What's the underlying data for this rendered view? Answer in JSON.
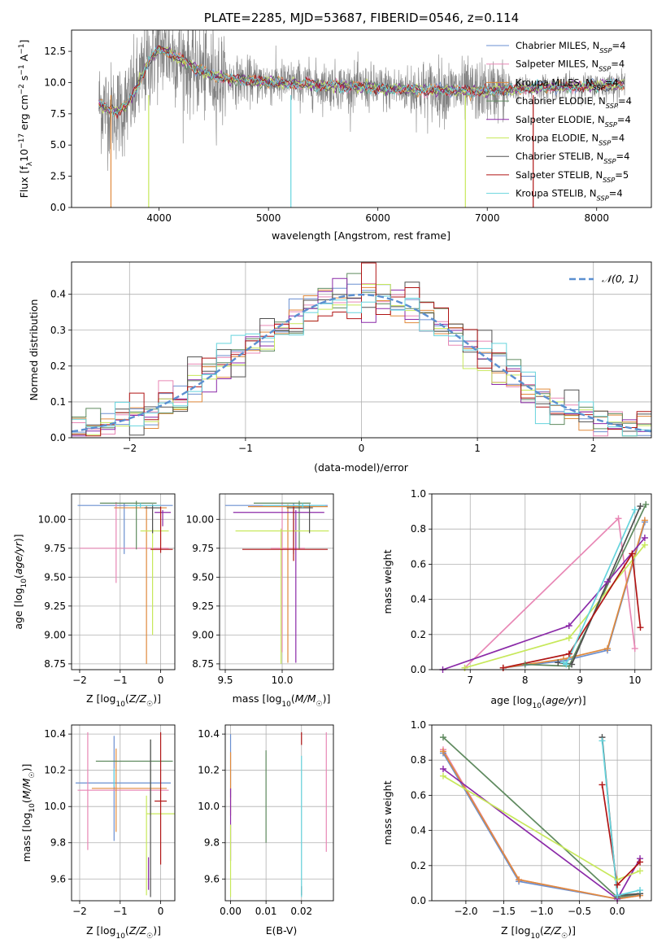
{
  "title": "PLATE=2285, MJD=53687, FIBERID=0546, z=0.114",
  "colors": {
    "Chabrier MILES": "#6a8fd0",
    "Salpeter MILES": "#e887b5",
    "Kroupa MILES": "#e08a3c",
    "Chabrier ELODIE": "#5f8a5f",
    "Salpeter ELODIE": "#8b2aa8",
    "Kroupa ELODIE": "#c7e85a",
    "Chabrier STELIB": "#505050",
    "Salpeter STELIB": "#b01515",
    "Kroupa STELIB": "#66d4dd",
    "data": "#808080",
    "normal": "#5b8fd0"
  },
  "chart_data": [
    {
      "id": "spectrum",
      "type": "line",
      "xlabel": "wavelength [Angstrom, rest frame]",
      "ylabel": "Flux [f_λ10^-17 erg cm^-2 s^-1 A^-1]",
      "xlim": [
        3200,
        8500
      ],
      "ylim": [
        0,
        14.2
      ],
      "xticks": [
        4000,
        5000,
        6000,
        7000,
        8000
      ],
      "yticks": [
        0.0,
        2.5,
        5.0,
        7.5,
        10.0,
        12.5
      ],
      "grid": false,
      "legend_position": "top-right",
      "legend": [
        {
          "base": "Chabrier MILES, N",
          "sub": "SSP",
          "tail": "=4",
          "key": "Chabrier MILES"
        },
        {
          "base": "Salpeter MILES, N",
          "sub": "SSP",
          "tail": "=4",
          "key": "Salpeter MILES"
        },
        {
          "base": "Kroupa MILES, N",
          "sub": "SSP",
          "tail": "=4",
          "key": "Kroupa MILES"
        },
        {
          "base": "Chabrier ELODIE, N",
          "sub": "SSP",
          "tail": "=4",
          "key": "Chabrier ELODIE"
        },
        {
          "base": "Salpeter ELODIE, N",
          "sub": "SSP",
          "tail": "=4",
          "key": "Salpeter ELODIE"
        },
        {
          "base": "Kroupa ELODIE, N",
          "sub": "SSP",
          "tail": "=4",
          "key": "Kroupa ELODIE"
        },
        {
          "base": "Chabrier STELIB, N",
          "sub": "SSP",
          "tail": "=4",
          "key": "Chabrier STELIB"
        },
        {
          "base": "Salpeter STELIB, N",
          "sub": "SSP",
          "tail": "=5",
          "key": "Salpeter STELIB"
        },
        {
          "base": "Kroupa STELIB, N",
          "sub": "SSP",
          "tail": "=4",
          "key": "Kroupa STELIB"
        }
      ],
      "model_continuum": {
        "x": [
          3450,
          3600,
          3700,
          3800,
          3900,
          4000,
          4100,
          4300,
          4500,
          4700,
          4900,
          5100,
          5300,
          5500,
          5700,
          5900,
          6100,
          6300,
          6500,
          6700,
          6900,
          7100,
          7300,
          7500,
          7700,
          7900,
          8100,
          8260
        ],
        "y": [
          8.3,
          7.6,
          8.1,
          9.6,
          11.6,
          12.7,
          12.4,
          11.3,
          10.5,
          10.2,
          10.1,
          10.0,
          9.9,
          9.8,
          9.7,
          9.6,
          9.5,
          9.45,
          9.4,
          9.35,
          9.3,
          9.4,
          9.5,
          9.6,
          9.65,
          9.7,
          9.8,
          9.85
        ]
      }
    },
    {
      "id": "residuals",
      "type": "histogram",
      "xlabel": "(data-model)/error",
      "ylabel": "Normed distribution",
      "xlim": [
        -2.5,
        2.5
      ],
      "ylim": [
        0,
        0.49
      ],
      "xticks": [
        -2,
        -1,
        0,
        1,
        2
      ],
      "yticks": [
        0.0,
        0.1,
        0.2,
        0.3,
        0.4
      ],
      "grid": true,
      "legend_position": "top-right",
      "legend_label": "N(0,1)"
    },
    {
      "id": "age_vs_Z",
      "type": "errorbar",
      "xlabel": "Z [log10(Z/Z☉)]",
      "ylabel": "age  [log10(age/yr)]",
      "xlim": [
        -2.2,
        0.35
      ],
      "ylim": [
        8.7,
        10.22
      ],
      "xticks": [
        -2,
        -1,
        0
      ],
      "yticks": [
        8.75,
        9.0,
        9.25,
        9.5,
        9.75,
        10.0
      ],
      "grid": true,
      "points": [
        {
          "key": "Chabrier MILES",
          "x": -0.9,
          "xerr": [
            1.15,
            1.2
          ],
          "y": 10.12,
          "yerr": [
            0.42,
            0.02
          ]
        },
        {
          "key": "Salpeter MILES",
          "x": -1.1,
          "xerr": [
            0.9,
            1.3
          ],
          "y": 9.75,
          "yerr": [
            0.3,
            0.4
          ]
        },
        {
          "key": "Kroupa MILES",
          "x": -0.35,
          "xerr": [
            0.8,
            0.5
          ],
          "y": 10.1,
          "yerr": [
            1.35,
            0.02
          ]
        },
        {
          "key": "Chabrier ELODIE",
          "x": -0.6,
          "xerr": [
            0.9,
            0.5
          ],
          "y": 10.14,
          "yerr": [
            0.4,
            0.02
          ]
        },
        {
          "key": "Salpeter ELODIE",
          "x": 0.05,
          "xerr": [
            0.2,
            0.2
          ],
          "y": 10.06,
          "yerr": [
            0.12,
            0.02
          ]
        },
        {
          "key": "Kroupa ELODIE",
          "x": -0.2,
          "xerr": [
            0.3,
            0.4
          ],
          "y": 9.9,
          "yerr": [
            0.9,
            0.02
          ]
        },
        {
          "key": "Chabrier STELIB",
          "x": -0.2,
          "xerr": [
            0.2,
            0.2
          ],
          "y": 10.1,
          "yerr": [
            0.22,
            0.03
          ]
        },
        {
          "key": "Salpeter STELIB",
          "x": 0.0,
          "xerr": [
            0.25,
            0.3
          ],
          "y": 9.74,
          "yerr": [
            0.03,
            0.37
          ]
        },
        {
          "key": "Kroupa STELIB",
          "x": -0.5,
          "xerr": [
            0.3,
            0.5
          ],
          "y": 10.12,
          "yerr": [
            0.02,
            0.02
          ]
        }
      ]
    },
    {
      "id": "age_vs_mass",
      "type": "errorbar",
      "xlabel": "mass [log10(M/M☉)]",
      "ylabel": "",
      "xlim": [
        9.45,
        10.45
      ],
      "ylim": [
        8.7,
        10.22
      ],
      "xticks": [
        9.5,
        10.0
      ],
      "yticks": [
        8.75,
        9.0,
        9.25,
        9.5,
        9.75,
        10.0
      ],
      "grid": true,
      "points": [
        {
          "key": "Chabrier MILES",
          "x": 10.1,
          "xerr": [
            0.6,
            0.3
          ],
          "y": 10.12,
          "yerr": [
            0.42,
            0.02
          ]
        },
        {
          "key": "Salpeter MILES",
          "x": 10.0,
          "xerr": [
            0.1,
            0.2
          ],
          "y": 9.75,
          "yerr": [
            0.9,
            0.4
          ]
        },
        {
          "key": "Kroupa MILES",
          "x": 10.05,
          "xerr": [
            0.35,
            0.35
          ],
          "y": 10.11,
          "yerr": [
            1.35,
            0.02
          ]
        },
        {
          "key": "Chabrier ELODIE",
          "x": 10.15,
          "xerr": [
            0.4,
            0.1
          ],
          "y": 10.14,
          "yerr": [
            0.4,
            0.02
          ]
        },
        {
          "key": "Salpeter ELODIE",
          "x": 10.12,
          "xerr": [
            0.55,
            0.25
          ],
          "y": 10.06,
          "yerr": [
            1.3,
            0.02
          ]
        },
        {
          "key": "Kroupa ELODIE",
          "x": 9.99,
          "xerr": [
            0.4,
            0.42
          ],
          "y": 9.9,
          "yerr": [
            1.15,
            0.02
          ]
        },
        {
          "key": "Chabrier STELIB",
          "x": 10.24,
          "xerr": [
            0.2,
            0.03
          ],
          "y": 10.1,
          "yerr": [
            0.22,
            0.03
          ]
        },
        {
          "key": "Salpeter STELIB",
          "x": 10.1,
          "xerr": [
            0.45,
            0.3
          ],
          "y": 9.74,
          "yerr": [
            0.1,
            0.37
          ]
        },
        {
          "key": "Kroupa STELIB",
          "x": 10.18,
          "xerr": [
            0.35,
            0.2
          ],
          "y": 10.12,
          "yerr": [
            0.02,
            0.02
          ]
        }
      ]
    },
    {
      "id": "mass_weight_vs_age",
      "type": "line",
      "xlabel": "age  [log10(age/yr)]",
      "ylabel": "mass weight",
      "xlim": [
        6.3,
        10.3
      ],
      "ylim": [
        0,
        1.0
      ],
      "xticks": [
        7,
        8,
        9,
        10
      ],
      "yticks": [
        0.0,
        0.2,
        0.4,
        0.6,
        0.8,
        1.0
      ],
      "grid": true,
      "series": [
        {
          "key": "Chabrier MILES",
          "x": [
            7.6,
            8.7,
            9.5,
            10.18
          ],
          "y": [
            0.01,
            0.05,
            0.11,
            0.84
          ]
        },
        {
          "key": "Salpeter MILES",
          "x": [
            6.9,
            9.7,
            10.0
          ],
          "y": [
            0.01,
            0.86,
            0.12
          ]
        },
        {
          "key": "Kroupa MILES",
          "x": [
            7.6,
            8.7,
            9.5,
            10.18
          ],
          "y": [
            0.01,
            0.06,
            0.12,
            0.85
          ]
        },
        {
          "key": "Chabrier ELODIE",
          "x": [
            8.0,
            8.8,
            10.2
          ],
          "y": [
            0.03,
            0.02,
            0.94
          ]
        },
        {
          "key": "Salpeter ELODIE",
          "x": [
            6.5,
            8.8,
            9.5,
            10.18
          ],
          "y": [
            0.0,
            0.25,
            0.5,
            0.75
          ]
        },
        {
          "key": "Kroupa ELODIE",
          "x": [
            6.9,
            8.8,
            10.18
          ],
          "y": [
            0.01,
            0.18,
            0.71
          ]
        },
        {
          "key": "Chabrier STELIB",
          "x": [
            8.6,
            8.85,
            10.1
          ],
          "y": [
            0.04,
            0.03,
            0.93
          ]
        },
        {
          "key": "Salpeter STELIB",
          "x": [
            7.6,
            8.8,
            9.95,
            10.1
          ],
          "y": [
            0.01,
            0.09,
            0.66,
            0.24
          ]
        },
        {
          "key": "Kroupa STELIB",
          "x": [
            8.7,
            8.75,
            10.0
          ],
          "y": [
            0.04,
            0.03,
            0.91
          ]
        }
      ]
    },
    {
      "id": "mass_vs_Z",
      "type": "errorbar",
      "xlabel": "Z [log10(Z/Z☉)]",
      "ylabel": "mass [log10(M/M☉)]",
      "xlim": [
        -2.2,
        0.35
      ],
      "ylim": [
        9.48,
        10.45
      ],
      "xticks": [
        -2,
        -1,
        0
      ],
      "yticks": [
        9.6,
        9.8,
        10.0,
        10.2,
        10.4
      ],
      "grid": true,
      "points": [
        {
          "key": "Chabrier MILES",
          "x": -1.15,
          "xerr": [
            0.95,
            1.4
          ],
          "y": 10.13,
          "yerr": [
            0.32,
            0.26
          ]
        },
        {
          "key": "Salpeter MILES",
          "x": -1.8,
          "xerr": [
            0.25,
            2.0
          ],
          "y": 10.09,
          "yerr": [
            0.33,
            0.32
          ]
        },
        {
          "key": "Kroupa MILES",
          "x": -1.1,
          "xerr": [
            0.6,
            1.25
          ],
          "y": 10.1,
          "yerr": [
            0.24,
            0.22
          ]
        },
        {
          "key": "Chabrier ELODIE",
          "x": -0.25,
          "xerr": [
            1.35,
            0.55
          ],
          "y": 10.25,
          "yerr": [
            0.3,
            0.12
          ]
        },
        {
          "key": "Salpeter ELODIE",
          "x": -0.3,
          "xerr": [
            0.0,
            0.0
          ],
          "y": 9.62,
          "yerr": [
            0.08,
            0.1
          ]
        },
        {
          "key": "Kroupa ELODIE",
          "x": -0.35,
          "xerr": [
            0.0,
            0.7
          ],
          "y": 9.96,
          "yerr": [
            0.45,
            0.1
          ]
        },
        {
          "key": "Chabrier STELIB",
          "x": -0.25,
          "xerr": [
            0.0,
            0.0
          ],
          "y": 10.1,
          "yerr": [
            0.6,
            0.27
          ]
        },
        {
          "key": "Salpeter STELIB",
          "x": 0.0,
          "xerr": [
            0.15,
            0.15
          ],
          "y": 10.03,
          "yerr": [
            0.35,
            0.38
          ]
        },
        {
          "key": "Kroupa STELIB",
          "x": -1.15,
          "xerr": [
            0.0,
            0.0
          ],
          "y": 10.16,
          "yerr": [
            0.05,
            0.05
          ]
        }
      ]
    },
    {
      "id": "mass_vs_EBV",
      "type": "errorbar",
      "xlabel": "E(B-V)",
      "ylabel": "",
      "xlim": [
        -0.0015,
        0.029
      ],
      "ylim": [
        9.48,
        10.45
      ],
      "xticks": [
        0.0,
        0.01,
        0.02
      ],
      "yticks": [
        9.6,
        9.8,
        10.0,
        10.2,
        10.4
      ],
      "grid": true,
      "points": [
        {
          "key": "Chabrier MILES",
          "x": 0.0,
          "xerr": [
            0,
            0
          ],
          "y": 10.25,
          "yerr": [
            0.2,
            0.15
          ]
        },
        {
          "key": "Salpeter MILES",
          "x": 0.027,
          "xerr": [
            0,
            0
          ],
          "y": 10.05,
          "yerr": [
            0.3,
            0.36
          ]
        },
        {
          "key": "Kroupa MILES",
          "x": 0.0,
          "xerr": [
            0,
            0
          ],
          "y": 10.2,
          "yerr": [
            0.25,
            0.1
          ]
        },
        {
          "key": "Chabrier ELODIE",
          "x": 0.01,
          "xerr": [
            0,
            0
          ],
          "y": 10.05,
          "yerr": [
            0.25,
            0.26
          ]
        },
        {
          "key": "Salpeter ELODIE",
          "x": 0.0,
          "xerr": [
            0,
            0
          ],
          "y": 10.0,
          "yerr": [
            0.3,
            0.1
          ]
        },
        {
          "key": "Kroupa ELODIE",
          "x": 0.0,
          "xerr": [
            0,
            0
          ],
          "y": 9.8,
          "yerr": [
            0.3,
            0.1
          ]
        },
        {
          "key": "Chabrier STELIB",
          "x": 0.02,
          "xerr": [
            0,
            0
          ],
          "y": 9.53,
          "yerr": [
            0.02,
            0.03
          ]
        },
        {
          "key": "Salpeter STELIB",
          "x": 0.02,
          "xerr": [
            0,
            0
          ],
          "y": 10.38,
          "yerr": [
            0.04,
            0.03
          ]
        },
        {
          "key": "Kroupa STELIB",
          "x": 0.02,
          "xerr": [
            0,
            0
          ],
          "y": 9.95,
          "yerr": [
            0.45,
            0.33
          ]
        }
      ]
    },
    {
      "id": "mass_weight_vs_Z",
      "type": "line",
      "xlabel": "Z [log10(Z/Z☉)]",
      "ylabel": "mass weight",
      "xlim": [
        -2.45,
        0.45
      ],
      "ylim": [
        0,
        1.0
      ],
      "xticks": [
        -2.0,
        -1.5,
        -1.0,
        -0.5,
        0.0
      ],
      "yticks": [
        0.0,
        0.2,
        0.4,
        0.6,
        0.8,
        1.0
      ],
      "grid": true,
      "series": [
        {
          "key": "Chabrier MILES",
          "x": [
            -2.3,
            -1.3,
            0.0,
            0.3
          ],
          "y": [
            0.84,
            0.11,
            0.01,
            0.04
          ]
        },
        {
          "key": "Salpeter MILES",
          "x": [
            -2.3,
            -1.3,
            0.0,
            0.3
          ],
          "y": [
            0.86,
            0.12,
            0.01,
            0.03
          ]
        },
        {
          "key": "Kroupa MILES",
          "x": [
            -2.3,
            -1.3,
            0.0,
            0.3
          ],
          "y": [
            0.85,
            0.12,
            0.01,
            0.03
          ]
        },
        {
          "key": "Chabrier ELODIE",
          "x": [
            -2.3,
            0.0,
            0.3
          ],
          "y": [
            0.93,
            0.02,
            0.04
          ]
        },
        {
          "key": "Salpeter ELODIE",
          "x": [
            -2.3,
            0.0,
            0.3
          ],
          "y": [
            0.75,
            0.01,
            0.24
          ]
        },
        {
          "key": "Kroupa ELODIE",
          "x": [
            -2.3,
            0.0,
            0.3
          ],
          "y": [
            0.71,
            0.12,
            0.17
          ]
        },
        {
          "key": "Chabrier STELIB",
          "x": [
            -0.2,
            0.0,
            0.3
          ],
          "y": [
            0.93,
            0.03,
            0.04
          ]
        },
        {
          "key": "Salpeter STELIB",
          "x": [
            -0.2,
            0.0,
            0.3
          ],
          "y": [
            0.66,
            0.09,
            0.22
          ]
        },
        {
          "key": "Kroupa STELIB",
          "x": [
            -0.2,
            0.0,
            0.3
          ],
          "y": [
            0.91,
            0.03,
            0.06
          ]
        }
      ]
    }
  ]
}
